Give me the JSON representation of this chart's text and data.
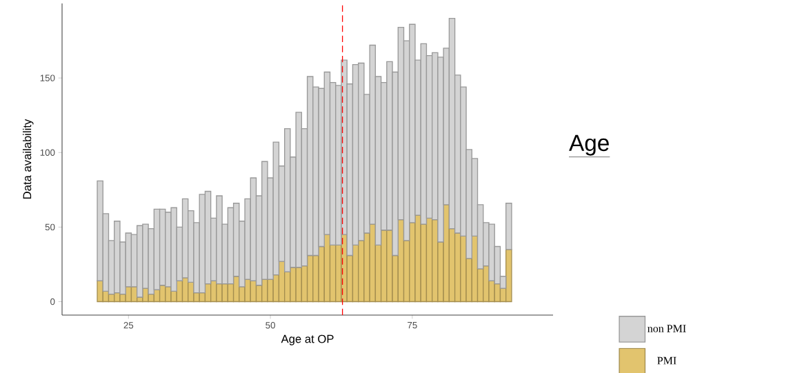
{
  "chart_data": {
    "type": "bar",
    "title": "Age",
    "xlabel": "Age at OP",
    "ylabel": "Data availability",
    "x": [
      20,
      21,
      22,
      23,
      24,
      25,
      26,
      27,
      28,
      29,
      30,
      31,
      32,
      33,
      34,
      35,
      36,
      37,
      38,
      39,
      40,
      41,
      42,
      43,
      44,
      45,
      46,
      47,
      48,
      49,
      50,
      51,
      52,
      53,
      54,
      55,
      56,
      57,
      58,
      59,
      60,
      61,
      62,
      63,
      64,
      65,
      66,
      67,
      68,
      69,
      70,
      71,
      72,
      73,
      74,
      75,
      76,
      77,
      78,
      79,
      80,
      81,
      82,
      83,
      84,
      85,
      86,
      87,
      88,
      89,
      90,
      91,
      92
    ],
    "series": [
      {
        "name": "PMI",
        "color": "#e2c46e",
        "values": [
          14,
          7,
          5,
          6,
          5,
          10,
          10,
          3,
          9,
          5,
          8,
          11,
          10,
          7,
          14,
          16,
          13,
          6,
          6,
          12,
          14,
          12,
          12,
          12,
          17,
          10,
          15,
          14,
          11,
          15,
          15,
          18,
          27,
          20,
          23,
          23,
          24,
          31,
          31,
          37,
          45,
          38,
          38,
          45,
          31,
          38,
          41,
          46,
          52,
          38,
          48,
          48,
          31,
          55,
          41,
          53,
          58,
          52,
          56,
          55,
          40,
          65,
          49,
          46,
          44,
          29,
          44,
          22,
          24,
          14,
          12,
          9,
          35
        ]
      },
      {
        "name": "non PMI",
        "color": "#d4d4d4",
        "values": [
          67,
          52,
          36,
          48,
          35,
          36,
          35,
          48,
          43,
          44,
          54,
          51,
          50,
          56,
          36,
          53,
          48,
          47,
          66,
          62,
          42,
          59,
          40,
          51,
          49,
          44,
          54,
          69,
          60,
          79,
          68,
          89,
          64,
          96,
          74,
          104,
          92,
          120,
          113,
          106,
          109,
          109,
          107,
          117,
          115,
          121,
          119,
          93,
          120,
          113,
          99,
          113,
          123,
          129,
          134,
          133,
          104,
          121,
          109,
          112,
          124,
          105,
          141,
          106,
          100,
          73,
          52,
          43,
          29,
          38,
          25,
          8,
          31
        ]
      }
    ],
    "stacked": true,
    "xlim": [
      13.3,
      99.8
    ],
    "ylim": [
      -9,
      200
    ],
    "xticks": [
      25,
      50,
      75
    ],
    "yticks": [
      0,
      50,
      100,
      150
    ],
    "ref_lines": [
      {
        "axis": "x",
        "value": 62.7,
        "color": "#ff0000",
        "line_style": "dashed"
      }
    ],
    "legend": "bottom right"
  }
}
